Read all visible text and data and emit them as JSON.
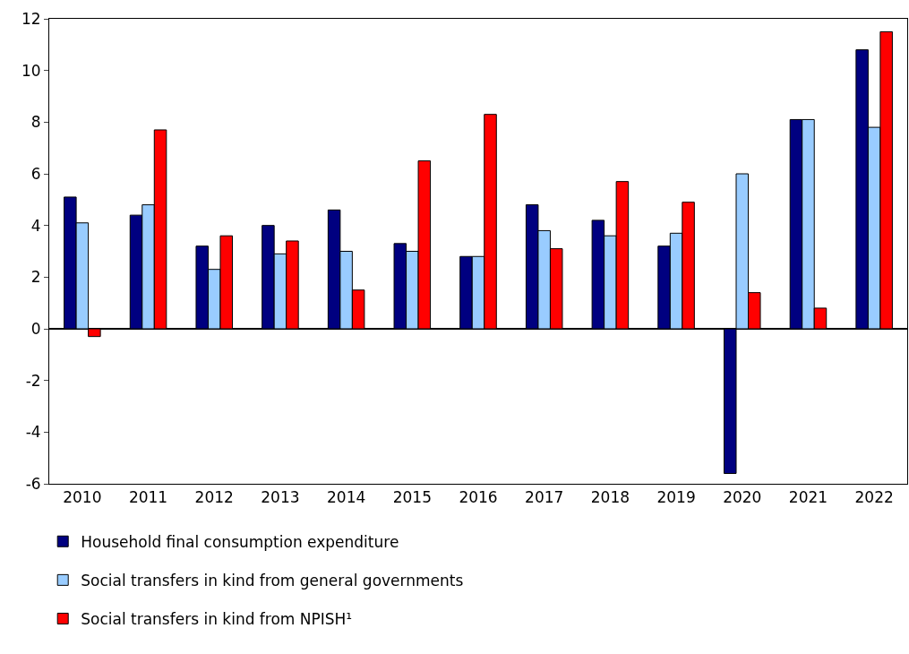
{
  "chart_data": {
    "type": "bar",
    "categories": [
      "2010",
      "2011",
      "2012",
      "2013",
      "2014",
      "2015",
      "2016",
      "2017",
      "2018",
      "2019",
      "2020",
      "2021",
      "2022"
    ],
    "series": [
      {
        "name": "Household final consumption expenditure",
        "color": "#000080",
        "values": [
          5.1,
          4.4,
          3.2,
          4.0,
          4.6,
          3.3,
          2.8,
          4.8,
          4.2,
          3.2,
          -5.6,
          8.1,
          10.8
        ]
      },
      {
        "name": "Social transfers in kind from general governments",
        "color": "#99ccff",
        "values": [
          4.1,
          4.8,
          2.3,
          2.9,
          3.0,
          3.0,
          2.8,
          3.8,
          3.6,
          3.7,
          6.0,
          8.1,
          7.8
        ]
      },
      {
        "name": "Social transfers in kind from NPISH¹",
        "color": "#ff0000",
        "values": [
          -0.3,
          7.7,
          3.6,
          3.4,
          1.5,
          6.5,
          8.3,
          3.1,
          5.7,
          4.9,
          1.4,
          0.8,
          11.5
        ]
      }
    ],
    "ylim": [
      -6,
      12
    ],
    "yticks": [
      -6,
      -4,
      -2,
      0,
      2,
      4,
      6,
      8,
      10,
      12
    ],
    "legend": "bottom"
  }
}
